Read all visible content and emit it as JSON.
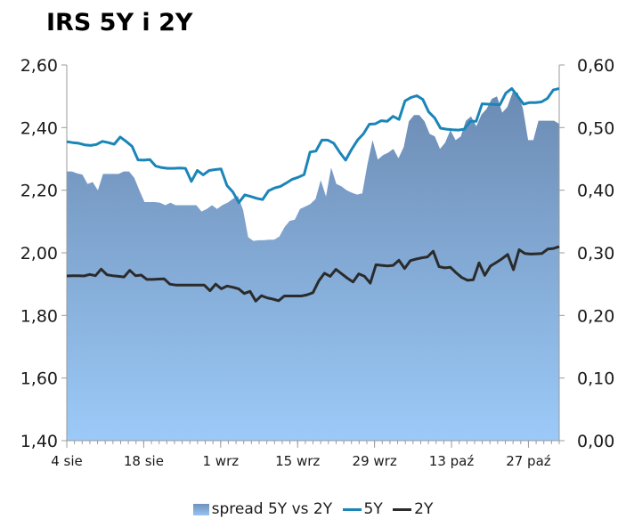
{
  "title": "IRS 5Y i 2Y",
  "colors": {
    "line5y": "#1a85b8",
    "line2y": "#2b2b2b",
    "area_top": "#6e8fb8",
    "area_bottom": "#9cc9f7",
    "axis": "#9b9b9b"
  },
  "chart_data": {
    "type": "line",
    "title": "IRS 5Y i 2Y",
    "y_left": {
      "min": 1.4,
      "max": 2.6,
      "ticks": [
        "1,40",
        "1,60",
        "1,80",
        "2,00",
        "2,20",
        "2,40",
        "2,60"
      ]
    },
    "y_right": {
      "min": 0.0,
      "max": 0.6,
      "ticks": [
        "0,00",
        "0,10",
        "0,20",
        "0,30",
        "0,40",
        "0,50",
        "0,60"
      ]
    },
    "x_range": [
      0,
      64
    ],
    "x_ticks": [
      {
        "x": 0,
        "label": "4 sie"
      },
      {
        "x": 10,
        "label": "18 sie"
      },
      {
        "x": 20,
        "label": "1 wrz"
      },
      {
        "x": 30,
        "label": "15 wrz"
      },
      {
        "x": 40,
        "label": "29 wrz"
      },
      {
        "x": 50,
        "label": "13 paź"
      },
      {
        "x": 60,
        "label": "27 paź"
      }
    ],
    "grid": false,
    "legend_position": "bottom",
    "series": [
      {
        "name": "spread 5Y vs 2Y",
        "axis": "right",
        "style": "area",
        "values": [
          0.43,
          0.43,
          0.427,
          0.425,
          0.41,
          0.413,
          0.4,
          0.426,
          0.426,
          0.426,
          0.426,
          0.43,
          0.43,
          0.42,
          0.4,
          0.381,
          0.381,
          0.381,
          0.38,
          0.376,
          0.38,
          0.376,
          0.376,
          0.376,
          0.376,
          0.376,
          0.366,
          0.37,
          0.376,
          0.37,
          0.376,
          0.38,
          0.386,
          0.391,
          0.369,
          0.325,
          0.319,
          0.32,
          0.32,
          0.321,
          0.321,
          0.326,
          0.341,
          0.351,
          0.353,
          0.37,
          0.374,
          0.378,
          0.386,
          0.416,
          0.39,
          0.436,
          0.41,
          0.406,
          0.4,
          0.396,
          0.393,
          0.395,
          0.441,
          0.48,
          0.449,
          0.456,
          0.46,
          0.466,
          0.451,
          0.469,
          0.51,
          0.52,
          0.52,
          0.51,
          0.49,
          0.486,
          0.466,
          0.476,
          0.496,
          0.48,
          0.486,
          0.511,
          0.518,
          0.502,
          0.521,
          0.53,
          0.546,
          0.55,
          0.524,
          0.533,
          0.556,
          0.556,
          0.53,
          0.48,
          0.48,
          0.511,
          0.511,
          0.511,
          0.511,
          0.506
        ]
      },
      {
        "name": "5Y",
        "axis": "left",
        "style": "line",
        "values": [
          2.355,
          2.352,
          2.35,
          2.345,
          2.343,
          2.346,
          2.356,
          2.352,
          2.347,
          2.37,
          2.356,
          2.34,
          2.297,
          2.296,
          2.298,
          2.277,
          2.272,
          2.27,
          2.27,
          2.271,
          2.27,
          2.228,
          2.263,
          2.249,
          2.263,
          2.266,
          2.268,
          2.215,
          2.194,
          2.16,
          2.185,
          2.18,
          2.174,
          2.17,
          2.198,
          2.207,
          2.212,
          2.223,
          2.235,
          2.241,
          2.25,
          2.322,
          2.325,
          2.36,
          2.36,
          2.35,
          2.321,
          2.296,
          2.33,
          2.36,
          2.38,
          2.411,
          2.412,
          2.422,
          2.42,
          2.436,
          2.426,
          2.485,
          2.496,
          2.502,
          2.49,
          2.45,
          2.431,
          2.398,
          2.395,
          2.393,
          2.392,
          2.395,
          2.42,
          2.42,
          2.476,
          2.475,
          2.474,
          2.473,
          2.51,
          2.525,
          2.5,
          2.475,
          2.48,
          2.48,
          2.482,
          2.493,
          2.52,
          2.525
        ]
      },
      {
        "name": "2Y",
        "axis": "left",
        "style": "line",
        "values": [
          1.926,
          1.927,
          1.927,
          1.926,
          1.931,
          1.927,
          1.948,
          1.93,
          1.927,
          1.925,
          1.923,
          1.944,
          1.927,
          1.929,
          1.915,
          1.915,
          1.916,
          1.917,
          1.9,
          1.897,
          1.897,
          1.897,
          1.897,
          1.897,
          1.897,
          1.879,
          1.9,
          1.885,
          1.894,
          1.89,
          1.885,
          1.87,
          1.877,
          1.846,
          1.863,
          1.856,
          1.852,
          1.847,
          1.862,
          1.862,
          1.862,
          1.862,
          1.866,
          1.873,
          1.91,
          1.935,
          1.925,
          1.947,
          1.933,
          1.919,
          1.907,
          1.933,
          1.925,
          1.903,
          1.962,
          1.96,
          1.958,
          1.96,
          1.976,
          1.95,
          1.975,
          1.98,
          1.984,
          1.987,
          2.005,
          1.956,
          1.952,
          1.954,
          1.936,
          1.921,
          1.912,
          1.914,
          1.968,
          1.928,
          1.958,
          1.969,
          1.981,
          1.995,
          1.946,
          2.01,
          1.998,
          1.996,
          1.997,
          1.998,
          2.012,
          2.014,
          2.02
        ]
      }
    ]
  },
  "legend": {
    "spread_label": "spread 5Y vs 2Y",
    "y5_label": "5Y",
    "y2_label": "2Y"
  }
}
